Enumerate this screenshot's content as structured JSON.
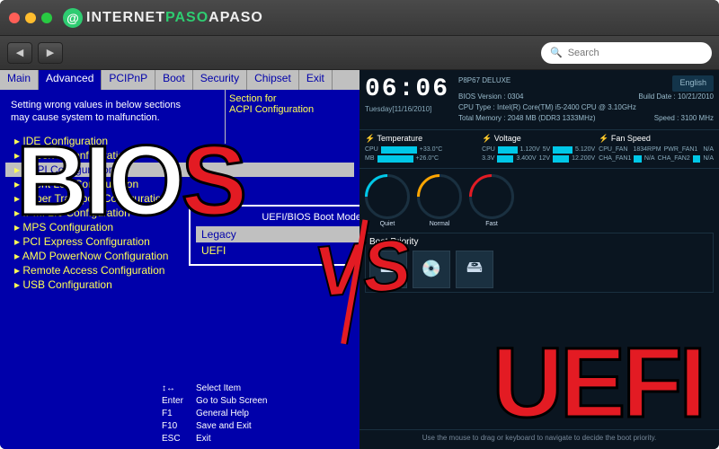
{
  "brand": {
    "name_a": "INTERNET",
    "name_b": "PASO",
    "name_c": "APASO",
    "badge": "@"
  },
  "search": {
    "placeholder": "Search"
  },
  "overlay": {
    "bios_b": "B",
    "bios_i": "I",
    "bios_o": "O",
    "bios_s": "S",
    "uefi": "UEFI",
    "vs": "VS"
  },
  "bios": {
    "tabs": [
      "Main",
      "Advanced",
      "PCIPnP",
      "Boot",
      "Security",
      "Chipset",
      "Exit"
    ],
    "active_tab": 1,
    "note": "Setting wrong values in below sections\nmay cause system to malfunction.",
    "sidebox": "Section for\nACPI Configuration",
    "items": [
      "IDE Configuration",
      "SuperIO Configuration",
      "ACPI Configuration",
      "Event Log Configuration",
      "Hyper Transport Configuration",
      "IPMI 2.0 Configuration",
      "MPS Configuration",
      "PCI Express Configuration",
      "AMD PowerNow Configuration",
      "Remote Access Configuration",
      "USB Configuration"
    ],
    "selected_item": 2,
    "popup": {
      "title": "UEFI/BIOS Boot Mode",
      "items": [
        "Legacy",
        "UEFI"
      ],
      "selected": 0
    },
    "help": [
      [
        "↕↔",
        "Select Item"
      ],
      [
        "Enter",
        "Go to Sub Screen"
      ],
      [
        "F1",
        "General Help"
      ],
      [
        "F10",
        "Save and Exit"
      ],
      [
        "ESC",
        "Exit"
      ]
    ],
    "colors": {
      "bg": "#0000aa",
      "hl": "#c0c0c0",
      "txt": "#ffff55"
    }
  },
  "uefi": {
    "board": "P8P67 DELUXE",
    "clock": "06:06",
    "date": "Tuesday[11/16/2010]",
    "lang": "English",
    "info": {
      "bios_ver": "BIOS Version : 0304",
      "build": "Build Date : 10/21/2010",
      "cpu": "CPU Type : Intel(R) Core(TM) i5-2400 CPU @ 3.10GHz",
      "mem": "Total Memory : 2048 MB (DDR3 1333MHz)",
      "speed": "Speed : 3100 MHz"
    },
    "sensors": {
      "temp": {
        "title": "Temperature",
        "rows": [
          [
            "CPU",
            "+33.0°C"
          ],
          [
            "MB",
            "+26.0°C"
          ]
        ]
      },
      "volt": {
        "title": "Voltage",
        "rows": [
          [
            "CPU",
            "1.120V",
            "5V",
            "5.120V"
          ],
          [
            "3.3V",
            "3.400V",
            "12V",
            "12.200V"
          ]
        ]
      },
      "fan": {
        "title": "Fan Speed",
        "rows": [
          [
            "CPU_FAN",
            "1834RPM",
            "PWR_FAN1",
            "N/A"
          ],
          [
            "CHA_FAN1",
            "N/A",
            "CHA_FAN2",
            "N/A"
          ]
        ]
      }
    },
    "gauges": [
      {
        "label": "Quiet",
        "color": "#00c8e8"
      },
      {
        "label": "Normal",
        "color": "#ffa500"
      },
      {
        "label": "Fast",
        "color": "#e31b23"
      }
    ],
    "boot": {
      "title": "Boot Priority",
      "hint": "Use the mouse to drag or keyboard to navigate to decide the boot priority."
    },
    "colors": {
      "bg": "#0a1520",
      "accent": "#00c8e8"
    }
  }
}
